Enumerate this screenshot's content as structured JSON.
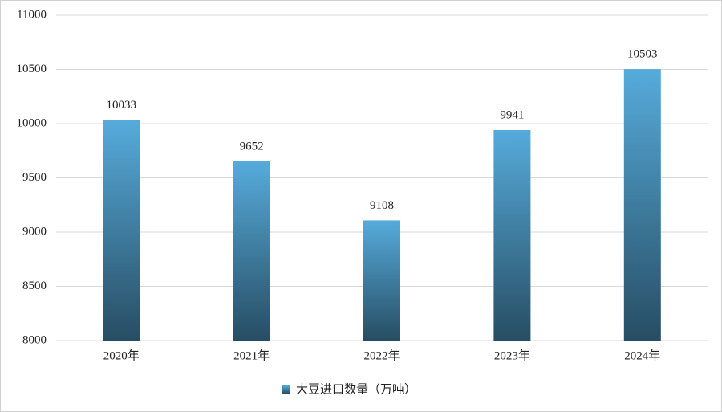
{
  "chart_data": {
    "type": "bar",
    "categories": [
      "2020年",
      "2021年",
      "2022年",
      "2023年",
      "2024年"
    ],
    "series": [
      {
        "name": "大豆进口数量（万吨）",
        "color": "#56abdb",
        "values": [
          10033,
          9652,
          9108,
          9941,
          10503
        ]
      }
    ],
    "ylim": [
      8000,
      11000
    ],
    "yticks": [
      8000,
      8500,
      9000,
      9500,
      10000,
      10500,
      11000
    ],
    "grid": true,
    "legend": "bottom"
  }
}
